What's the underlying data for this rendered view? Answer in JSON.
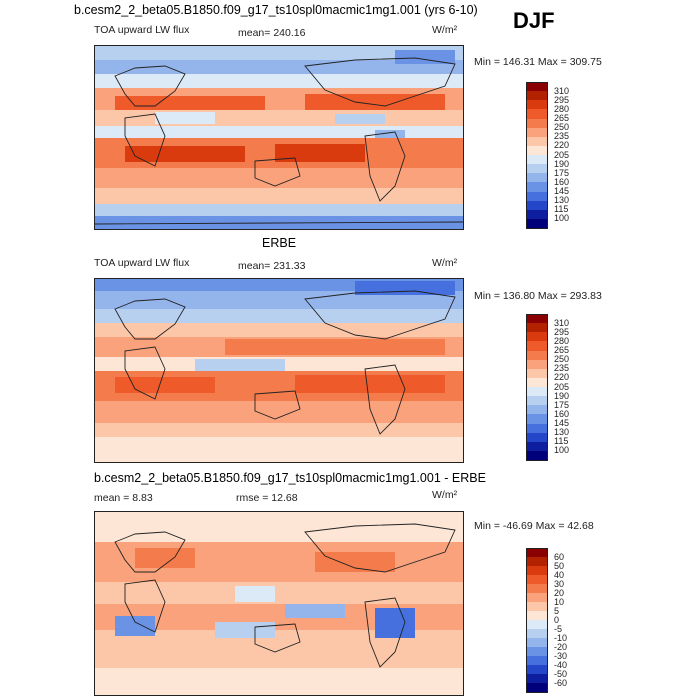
{
  "page": {
    "title": "b.cesm2_2_beta05.B1850.f09_g17_ts10spl0macmic1mg1.001 (yrs 6-10)",
    "season": "DJF"
  },
  "panels": [
    {
      "header": "",
      "variable_label": "TOA upward LW flux",
      "stat_label": "mean= 240.16",
      "units": "W/m²",
      "minmax": "Min = 146.31 Max = 309.75"
    },
    {
      "header": "ERBE",
      "variable_label": "TOA upward LW flux",
      "stat_label": "mean= 231.33",
      "units": "W/m²",
      "minmax": "Min = 136.80 Max = 293.83"
    },
    {
      "header": "b.cesm2_2_beta05.B1850.f09_g17_ts10spl0macmic1mg1.001 - ERBE",
      "variable_label": "mean =   8.83",
      "stat_label": "rmse =  12.68",
      "units": "W/m²",
      "minmax": "Min = -46.69 Max =  42.68"
    }
  ],
  "chart_data": [
    {
      "type": "heatmap",
      "title": "TOA upward LW flux",
      "subtitle": "b.cesm2_2_beta05.B1850.f09_g17_ts10spl0macmic1mg1.001 (yrs 6-10), DJF",
      "mean": 240.16,
      "min": 146.31,
      "max": 309.75,
      "units": "W/m2",
      "colorbar_levels": [
        310,
        295,
        280,
        265,
        250,
        235,
        220,
        205,
        190,
        175,
        160,
        145,
        130,
        115,
        100
      ],
      "colorbar_colors": [
        "#8b0000",
        "#b22200",
        "#d93b0e",
        "#ee5a2a",
        "#f47c4c",
        "#f9a27c",
        "#fcc7a8",
        "#fde6d6",
        "#dce9f7",
        "#b7d0f0",
        "#93b5ec",
        "#6a93e6",
        "#4570de",
        "#2347c8",
        "#0d1f9e",
        "#00007a"
      ]
    },
    {
      "type": "heatmap",
      "title": "TOA upward LW flux",
      "subtitle": "ERBE, DJF",
      "mean": 231.33,
      "min": 136.8,
      "max": 293.83,
      "units": "W/m2",
      "colorbar_levels": [
        310,
        295,
        280,
        265,
        250,
        235,
        220,
        205,
        190,
        175,
        160,
        145,
        130,
        115,
        100
      ],
      "colorbar_colors": [
        "#8b0000",
        "#b22200",
        "#d93b0e",
        "#ee5a2a",
        "#f47c4c",
        "#f9a27c",
        "#fcc7a8",
        "#fde6d6",
        "#dce9f7",
        "#b7d0f0",
        "#93b5ec",
        "#6a93e6",
        "#4570de",
        "#2347c8",
        "#0d1f9e",
        "#00007a"
      ]
    },
    {
      "type": "heatmap",
      "title": "b.cesm2_2_beta05.B1850.f09_g17_ts10spl0macmic1mg1.001 - ERBE",
      "mean": 8.83,
      "rmse": 12.68,
      "min": -46.69,
      "max": 42.68,
      "units": "W/m2",
      "colorbar_levels": [
        60,
        50,
        40,
        30,
        20,
        10,
        5,
        0,
        -5,
        -10,
        -20,
        -30,
        -40,
        -50,
        -60
      ],
      "colorbar_colors": [
        "#8b0000",
        "#b22200",
        "#d93b0e",
        "#ee5a2a",
        "#f47c4c",
        "#f9a27c",
        "#fcc7a8",
        "#fde6d6",
        "#dce9f7",
        "#b7d0f0",
        "#93b5ec",
        "#6a93e6",
        "#4570de",
        "#2347c8",
        "#0d1f9e",
        "#00007a"
      ]
    }
  ]
}
